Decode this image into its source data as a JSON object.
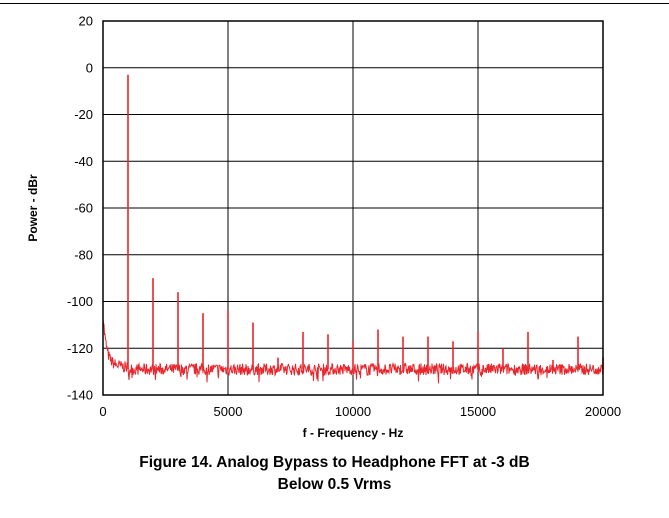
{
  "chart_data": {
    "type": "line",
    "title": "",
    "xlabel": "f - Frequency - Hz",
    "ylabel": "Power - dBr",
    "xlim": [
      0,
      20000
    ],
    "ylim": [
      -140,
      20
    ],
    "x_ticks": [
      0,
      5000,
      10000,
      15000,
      20000
    ],
    "y_ticks": [
      20,
      0,
      -20,
      -40,
      -60,
      -80,
      -100,
      -120,
      -140
    ],
    "grid": true,
    "line_color": "#e8262c",
    "noise_floor_db": -129,
    "peaks": [
      {
        "x": 1000,
        "y": -3
      },
      {
        "x": 2000,
        "y": -90
      },
      {
        "x": 3000,
        "y": -96
      },
      {
        "x": 4000,
        "y": -105
      },
      {
        "x": 5000,
        "y": -104
      },
      {
        "x": 6000,
        "y": -109
      },
      {
        "x": 7000,
        "y": -124
      },
      {
        "x": 8000,
        "y": -113
      },
      {
        "x": 9000,
        "y": -114
      },
      {
        "x": 10000,
        "y": -117
      },
      {
        "x": 11000,
        "y": -112
      },
      {
        "x": 12000,
        "y": -115
      },
      {
        "x": 13000,
        "y": -115
      },
      {
        "x": 14000,
        "y": -117
      },
      {
        "x": 15000,
        "y": -113
      },
      {
        "x": 16000,
        "y": -120
      },
      {
        "x": 17000,
        "y": -113
      },
      {
        "x": 18000,
        "y": -125
      },
      {
        "x": 19000,
        "y": -115
      },
      {
        "x": 20000,
        "y": -124
      }
    ]
  },
  "caption": {
    "line1": "Figure 14. Analog Bypass to Headphone FFT at -3 dB",
    "line2": "Below 0.5 Vrms"
  }
}
